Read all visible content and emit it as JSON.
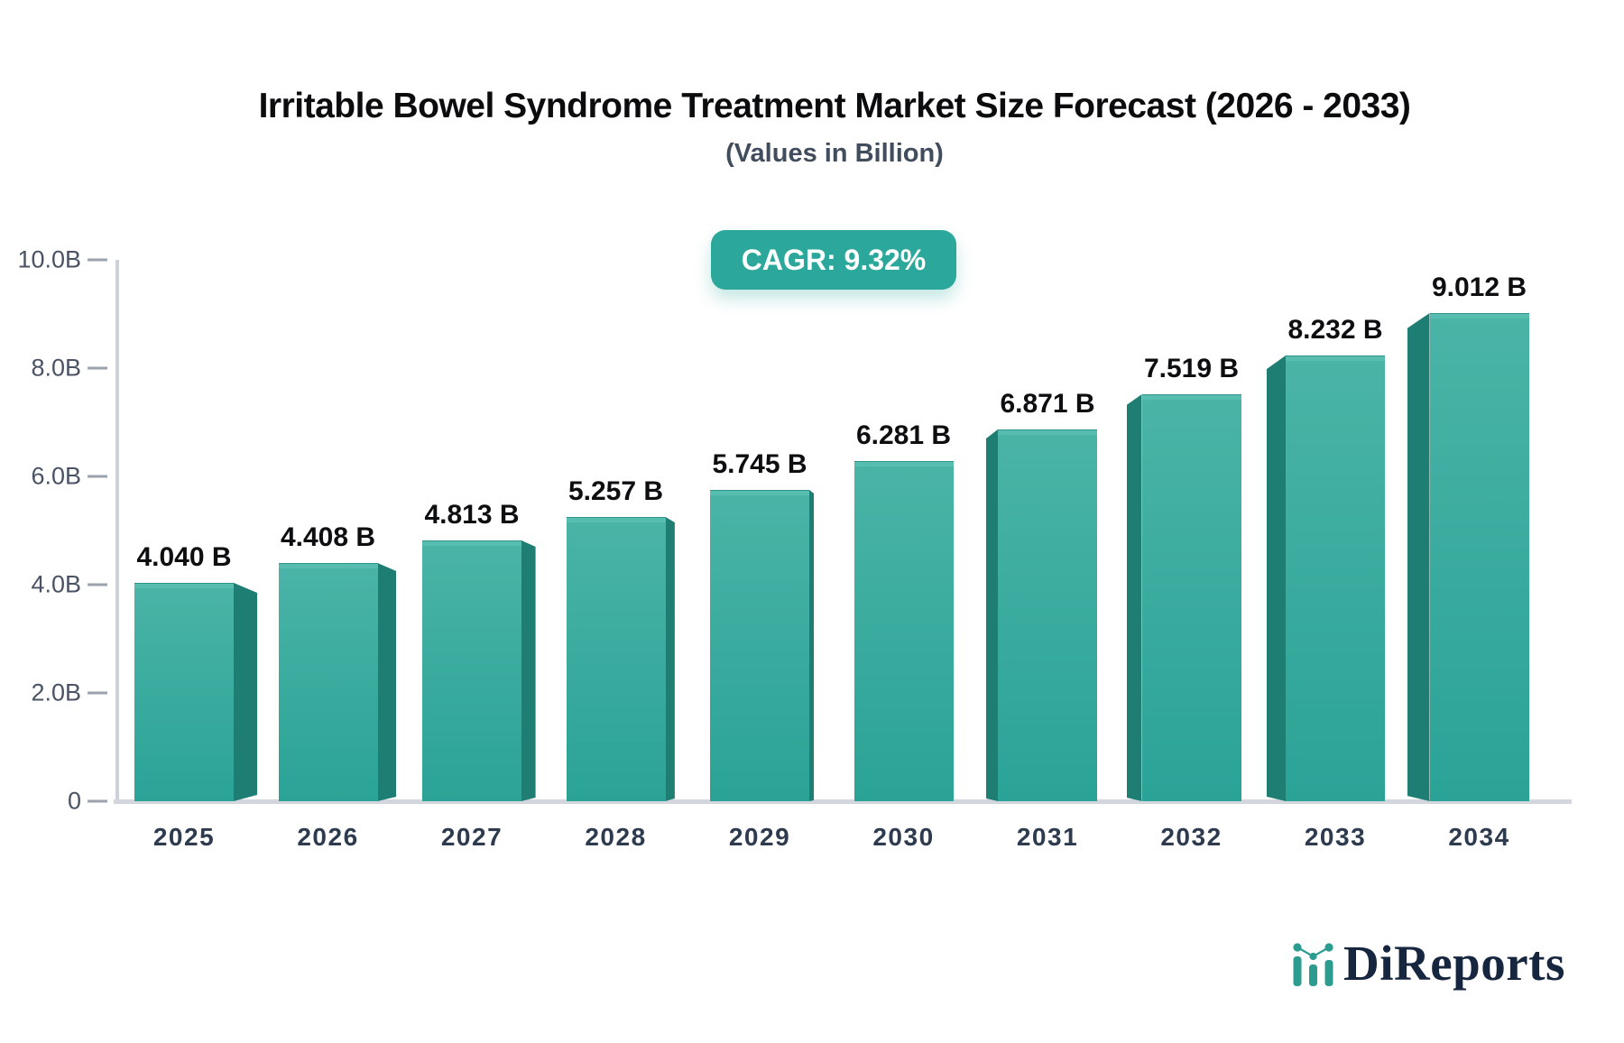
{
  "title": "Irritable Bowel Syndrome Treatment Market Size Forecast (2026 - 2033)",
  "subtitle": "(Values in Billion)",
  "cagr_badge": "CAGR: 9.32%",
  "chart_data": {
    "type": "bar",
    "title": "Irritable Bowel Syndrome Treatment Market Size Forecast (2026 - 2033)",
    "subtitle": "(Values in Billion)",
    "categories": [
      "2025",
      "2026",
      "2027",
      "2028",
      "2029",
      "2030",
      "2031",
      "2032",
      "2033",
      "2034"
    ],
    "values": [
      4.04,
      4.408,
      4.813,
      5.257,
      5.745,
      6.281,
      6.871,
      7.519,
      8.232,
      9.012
    ],
    "bar_labels": [
      "4.040 B",
      "4.408 B",
      "4.813 B",
      "5.257 B",
      "5.745 B",
      "6.281 B",
      "6.871 B",
      "7.519 B",
      "8.232 B",
      "9.012 B"
    ],
    "y_tick_labels": [
      "0",
      "2.0B",
      "4.0B",
      "6.0B",
      "8.0B",
      "10.0B"
    ],
    "y_tick_values": [
      0,
      2,
      4,
      6,
      8,
      10
    ],
    "ylim": [
      0,
      10
    ],
    "xlabel": "",
    "ylabel": "",
    "grid": false,
    "legend": "none",
    "annotation": "CAGR: 9.32%"
  },
  "colors": {
    "accent_teal": "#2ba89b",
    "bar_face_top": "#4ab4a7",
    "bar_face_bottom": "#2aa396",
    "bar_cap": "#56bdb0",
    "bar_side_dark": "#1f7e73",
    "axis_line": "#cdd2d9",
    "tick_dash": "#9ba3ae",
    "y_label_color": "#4a5364",
    "x_label_color": "#2e3b4f",
    "value_label_color": "#0d0e10",
    "logo_navy": "#16263f",
    "logo_teal": "#2d9c90"
  },
  "logo": {
    "text": "DiReports",
    "icon": "bar-chart-logo-icon"
  }
}
